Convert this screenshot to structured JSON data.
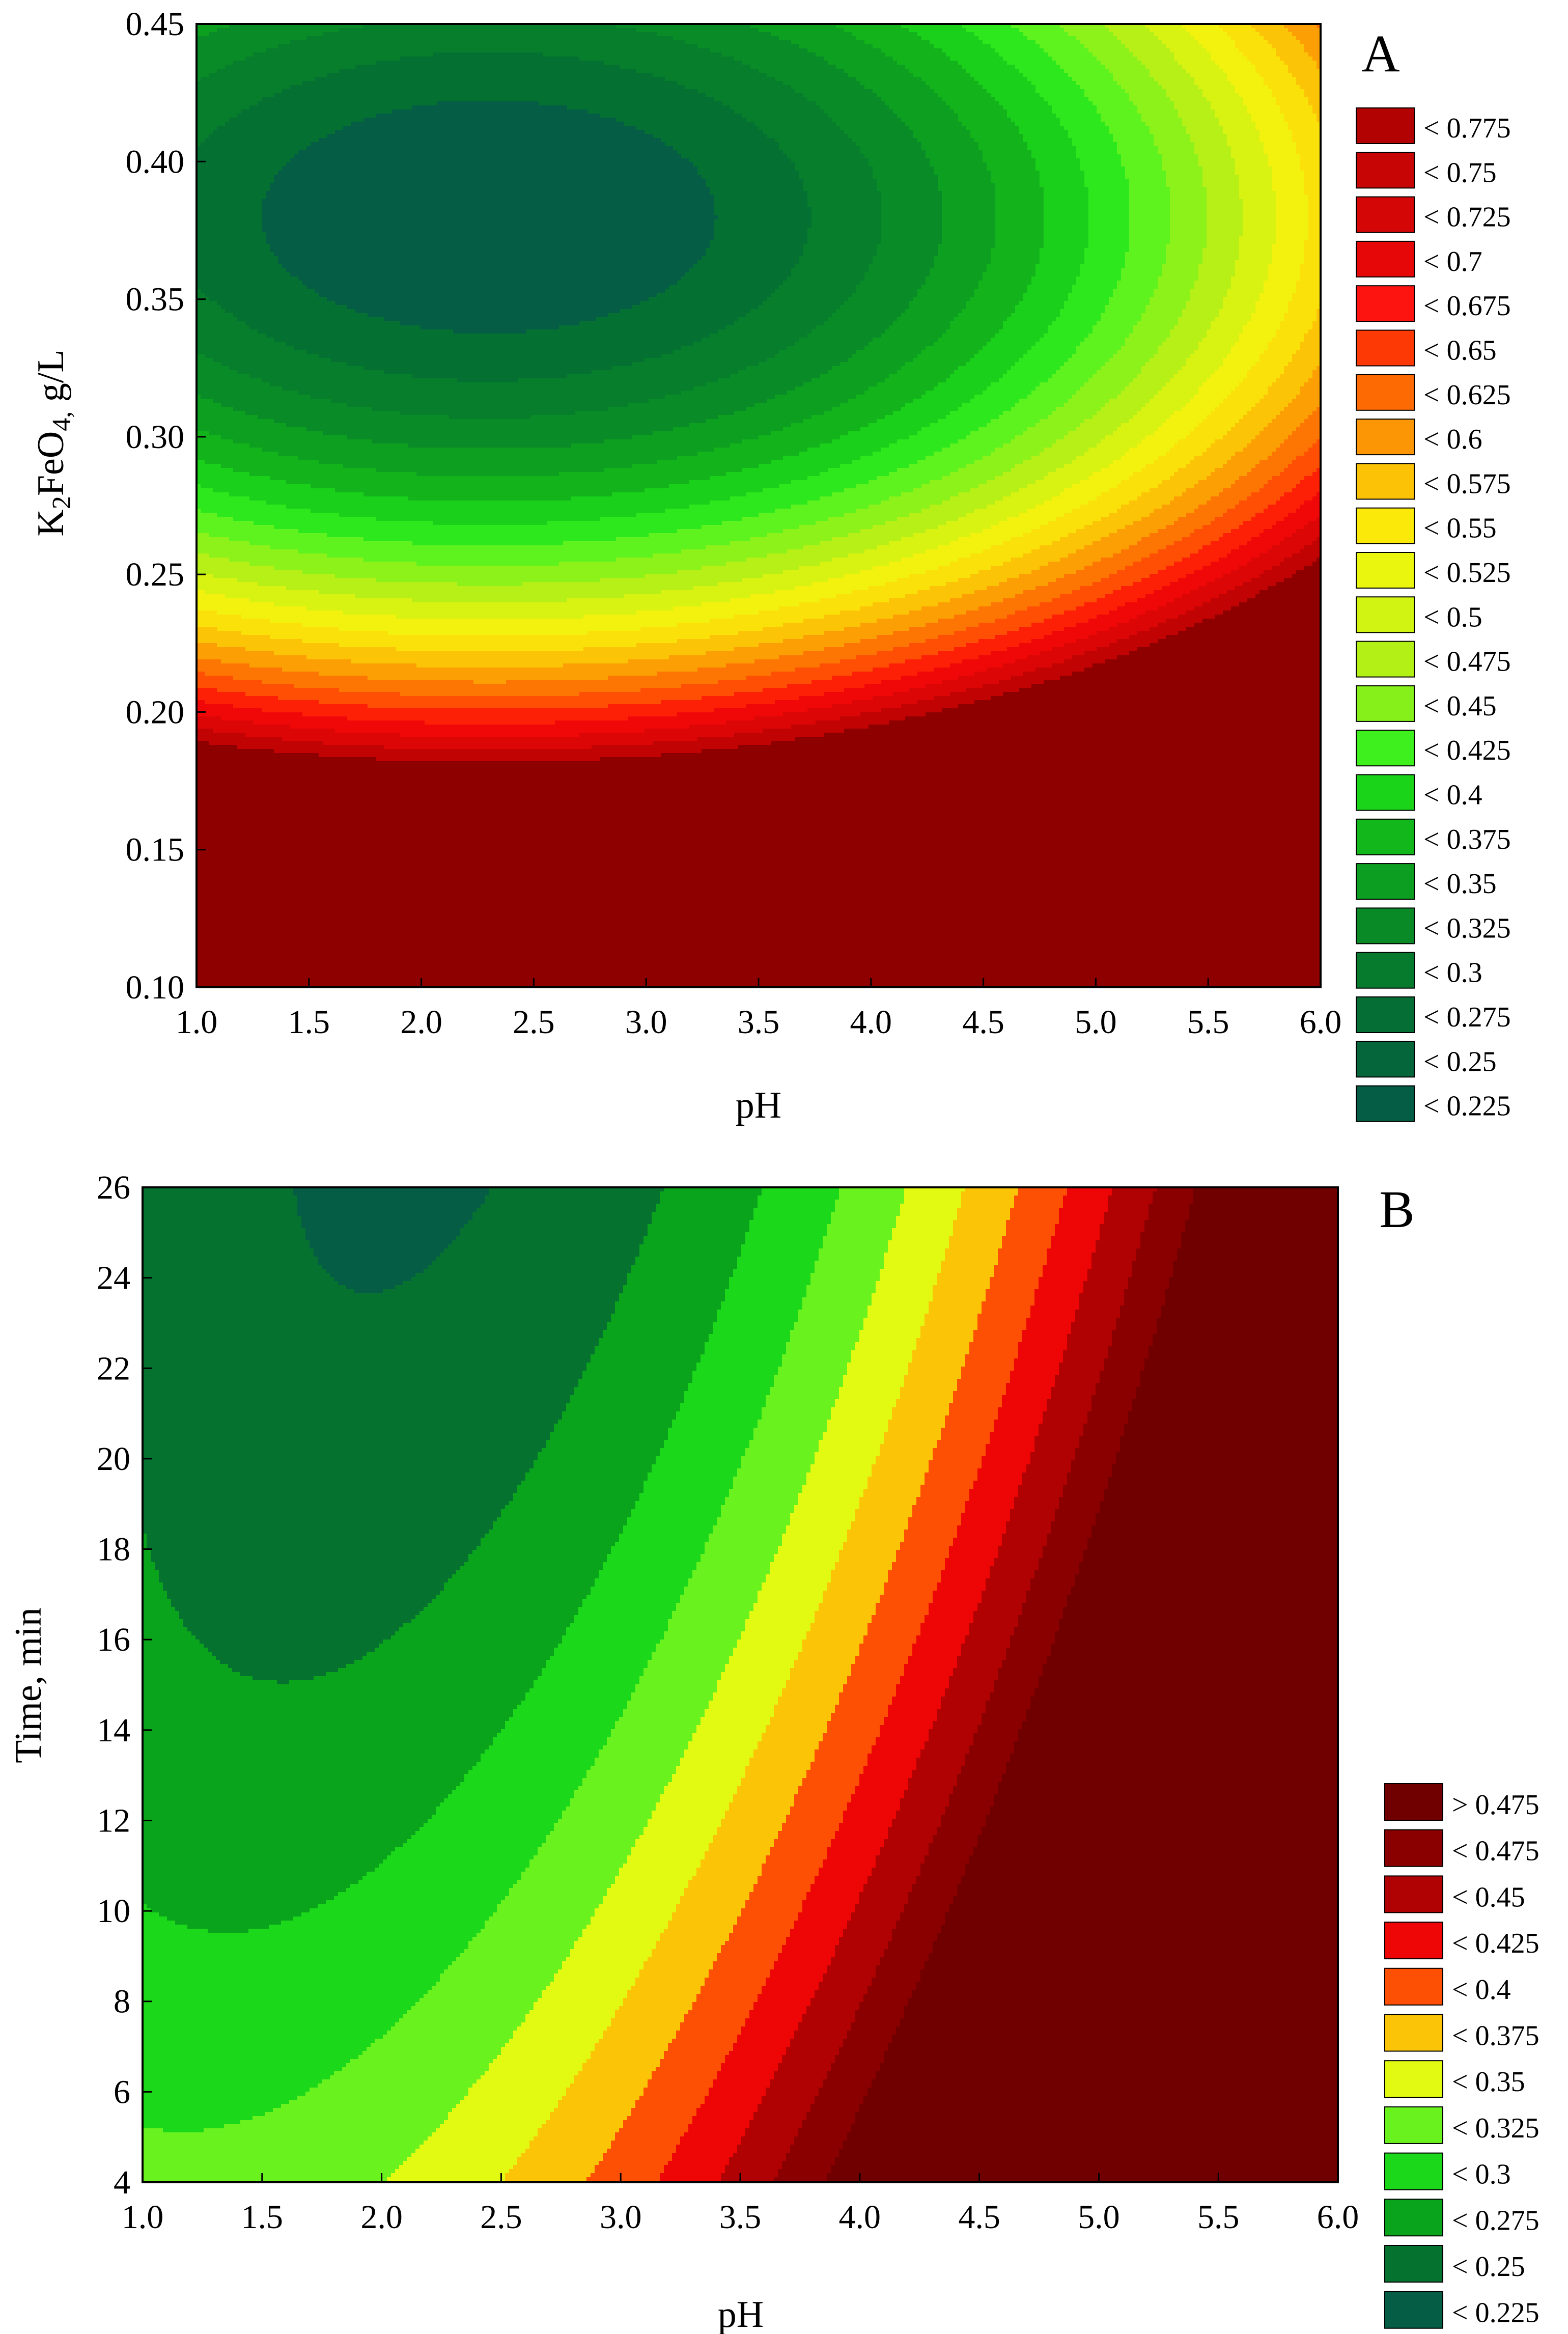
{
  "chart_data": [
    {
      "panel": "A",
      "type": "heatmap",
      "subtype": "contour",
      "xlabel": "pH",
      "ylabel": {
        "pre": "K",
        "sub1": "2",
        "mid": "FeO",
        "sub2": "4,",
        "post": " g/L"
      },
      "xlim": [
        1.0,
        6.0
      ],
      "ylim": [
        0.1,
        0.45
      ],
      "xticks": [
        "1.0",
        "1.5",
        "2.0",
        "2.5",
        "3.0",
        "3.5",
        "4.0",
        "4.5",
        "5.0",
        "5.5",
        "6.0"
      ],
      "yticks": [
        "0.10",
        "0.15",
        "0.20",
        "0.25",
        "0.30",
        "0.35",
        "0.40",
        "0.45"
      ],
      "model": {
        "c": 0.225,
        "x0": 2.3,
        "y0": 0.38,
        "ax": 0.0245,
        "ay": 14.0
      },
      "thresholds": [
        0.25,
        0.275,
        0.3,
        0.325,
        0.35,
        0.375,
        0.4,
        0.425,
        0.45,
        0.475,
        0.5,
        0.525,
        0.55,
        0.575,
        0.6,
        0.625,
        0.65,
        0.675,
        0.7,
        0.725,
        0.75,
        0.775
      ],
      "colors": [
        "#045d44",
        "#047133",
        "#067e2b",
        "#098b27",
        "#0c9f20",
        "#13b41b",
        "#1ad01a",
        "#2ee81e",
        "#5ef21e",
        "#8cf21a",
        "#b6f016",
        "#d8f212",
        "#f2f20e",
        "#fbe10a",
        "#fcc406",
        "#fc9f04",
        "#fd7604",
        "#fe4f05",
        "#fd2007",
        "#f00808",
        "#dc0606",
        "#c20303",
        "#8e0000"
      ],
      "legend": [
        "< 0.775",
        "< 0.75",
        "< 0.725",
        "< 0.7",
        "< 0.675",
        "< 0.65",
        "< 0.625",
        "< 0.6",
        "< 0.575",
        "< 0.55",
        "< 0.525",
        "< 0.5",
        "< 0.475",
        "< 0.45",
        "< 0.425",
        "< 0.4",
        "< 0.375",
        "< 0.35",
        "< 0.325",
        "< 0.3",
        "< 0.275",
        "< 0.25",
        "< 0.225"
      ],
      "legend_colors": [
        "#b30202",
        "#c80505",
        "#d40606",
        "#e60808",
        "#fd1410",
        "#fd3a06",
        "#fd6a04",
        "#fc9604",
        "#fcc206",
        "#fbe90a",
        "#eaf60e",
        "#d2f412",
        "#b2f016",
        "#86f01a",
        "#3ef01e",
        "#1ad41a",
        "#12b81b",
        "#0c9e20",
        "#098a27",
        "#067b2d",
        "#056e34",
        "#04663a",
        "#045d44"
      ]
    },
    {
      "panel": "B",
      "type": "heatmap",
      "subtype": "contour",
      "xlabel": "pH",
      "ylabel": "Time, min",
      "xlim": [
        1.0,
        6.0
      ],
      "ylim": [
        4,
        26
      ],
      "xticks": [
        "1.0",
        "1.5",
        "2.0",
        "2.5",
        "3.0",
        "3.5",
        "4.0",
        "4.5",
        "5.0",
        "5.5",
        "6.0"
      ],
      "yticks": [
        "4",
        "6",
        "8",
        "10",
        "12",
        "14",
        "16",
        "18",
        "20",
        "22",
        "24",
        "26"
      ],
      "model": {
        "c": 0.217,
        "x0": 2.3,
        "y0": 32,
        "ax": 0.0225,
        "ay": 0.000155,
        "k": 0.0019
      },
      "thresholds": [
        0.225,
        0.25,
        0.275,
        0.3,
        0.325,
        0.35,
        0.375,
        0.4,
        0.425,
        0.45,
        0.475
      ],
      "colors": [
        "#045d44",
        "#067230",
        "#0aa31c",
        "#1cd81a",
        "#6af21e",
        "#e2fa12",
        "#fcc406",
        "#fd5005",
        "#ee0606",
        "#b00202",
        "#8a0000",
        "#700000"
      ],
      "legend": [
        "> 0.475",
        "< 0.475",
        "< 0.45",
        "< 0.425",
        "< 0.4",
        "< 0.375",
        "< 0.35",
        "< 0.325",
        "< 0.3",
        "< 0.275",
        "< 0.25",
        "< 0.225"
      ],
      "legend_colors": [
        "#700000",
        "#8a0000",
        "#b00202",
        "#ee0606",
        "#fd5005",
        "#fcc406",
        "#e2fa12",
        "#6af21e",
        "#1cd81a",
        "#0aa31c",
        "#067230",
        "#045d44"
      ]
    }
  ]
}
